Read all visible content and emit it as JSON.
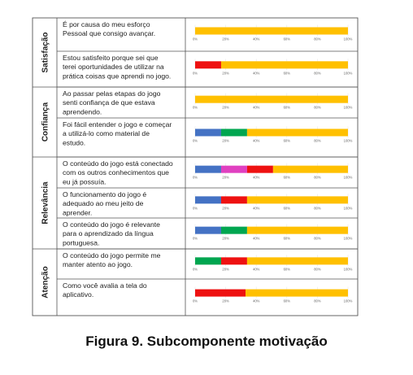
{
  "caption": "Figura 9. Subcomponente motivação",
  "colors": {
    "gold": "#ffc000",
    "red": "#ee1111",
    "blue": "#4472c4",
    "green": "#00a650",
    "pink": "#e040c0",
    "border": "#555555",
    "grid": "#e6e6e6"
  },
  "chart_data": {
    "type": "bar",
    "orientation": "horizontal",
    "stacked": true,
    "xlim": [
      0,
      100
    ],
    "tick_labels": [
      "0%",
      "20%",
      "40%",
      "60%",
      "80%",
      "100%"
    ],
    "categories": [
      {
        "name": "Satisfação",
        "rows": [
          0,
          1
        ]
      },
      {
        "name": "Confiança",
        "rows": [
          2,
          3
        ]
      },
      {
        "name": "Relevância",
        "rows": [
          4,
          5,
          6
        ]
      },
      {
        "name": "Atenção",
        "rows": [
          7,
          8
        ]
      }
    ],
    "rows": [
      {
        "question": [
          "É por causa do meu esforço",
          "Pessoal que consigo avançar."
        ],
        "segments": [
          {
            "color": "gold",
            "value": 100
          }
        ]
      },
      {
        "question": [
          "Estou satisfeito porque sei que",
          "terei oportunidades de utilizar na",
          "prática coisas que aprendi no jogo."
        ],
        "segments": [
          {
            "color": "red",
            "value": 17
          },
          {
            "color": "gold",
            "value": 83
          }
        ]
      },
      {
        "question": [
          "Ao passar pelas etapas do jogo",
          "senti confiança de que estava",
          "aprendendo."
        ],
        "segments": [
          {
            "color": "gold",
            "value": 100
          }
        ]
      },
      {
        "question": [
          "Foi fácil entender o jogo e começar",
          "a utilizá-lo como material de",
          "estudo."
        ],
        "segments": [
          {
            "color": "blue",
            "value": 17
          },
          {
            "color": "green",
            "value": 17
          },
          {
            "color": "gold",
            "value": 66
          }
        ]
      },
      {
        "question": [
          "O conteúdo do jogo está conectado",
          "com os outros conhecimentos que",
          "eu já possuía."
        ],
        "segments": [
          {
            "color": "blue",
            "value": 17
          },
          {
            "color": "pink",
            "value": 17
          },
          {
            "color": "red",
            "value": 17
          },
          {
            "color": "gold",
            "value": 49
          }
        ]
      },
      {
        "question": [
          "O funcionamento do jogo é",
          "adequado ao meu jeito de",
          "aprender."
        ],
        "segments": [
          {
            "color": "blue",
            "value": 17
          },
          {
            "color": "red",
            "value": 17
          },
          {
            "color": "gold",
            "value": 66
          }
        ]
      },
      {
        "question": [
          "O conteúdo do jogo é relevante",
          "para o aprendizado da língua",
          "portuguesa."
        ],
        "segments": [
          {
            "color": "blue",
            "value": 17
          },
          {
            "color": "green",
            "value": 17
          },
          {
            "color": "gold",
            "value": 66
          }
        ]
      },
      {
        "question": [
          "O conteúdo do jogo permite me",
          "manter atento ao jogo."
        ],
        "segments": [
          {
            "color": "green",
            "value": 17
          },
          {
            "color": "red",
            "value": 17
          },
          {
            "color": "gold",
            "value": 66
          }
        ]
      },
      {
        "question": [
          "Como você avalia a tela do",
          "aplicativo."
        ],
        "segments": [
          {
            "color": "red",
            "value": 33
          },
          {
            "color": "gold",
            "value": 67
          }
        ]
      }
    ]
  }
}
